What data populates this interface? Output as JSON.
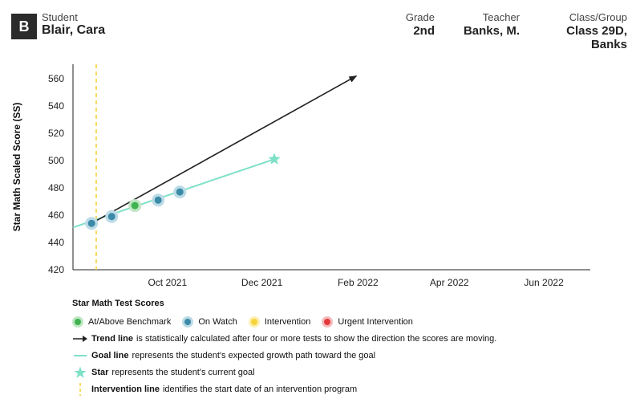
{
  "header": {
    "badge": "B",
    "student_label": "Student",
    "student_name": "Blair, Cara",
    "grade_label": "Grade",
    "grade_value": "2nd",
    "teacher_label": "Teacher",
    "teacher_value": "Banks, M.",
    "class_label": "Class/Group",
    "class_value": "Class 29D, Banks"
  },
  "chart_data": {
    "type": "line",
    "ylabel": "Star Math Scaled Score (SS)",
    "ylim": [
      420,
      570
    ],
    "yticks": [
      420,
      440,
      460,
      480,
      500,
      520,
      540,
      560
    ],
    "xticks": [
      "Oct 2021",
      "Dec 2021",
      "Feb 2022",
      "Apr 2022",
      "Jun 2022"
    ],
    "xtick_dates": [
      "2021-10-01",
      "2021-12-01",
      "2022-02-01",
      "2022-04-01",
      "2022-06-01"
    ],
    "xlim": [
      "2021-08-01",
      "2022-07-01"
    ],
    "intervention_date": "2021-08-16",
    "scores": [
      {
        "date": "2021-08-13",
        "value": 454,
        "category": "On Watch"
      },
      {
        "date": "2021-08-26",
        "value": 459,
        "category": "On Watch"
      },
      {
        "date": "2021-09-10",
        "value": 467,
        "category": "At/Above Benchmark"
      },
      {
        "date": "2021-09-25",
        "value": 471,
        "category": "On Watch"
      },
      {
        "date": "2021-10-09",
        "value": 477,
        "category": "On Watch"
      }
    ],
    "goal_line": {
      "start": {
        "date": "2021-08-01",
        "value": 451
      },
      "end": {
        "date": "2021-12-09",
        "value": 501
      }
    },
    "goal_star": {
      "date": "2021-12-09",
      "value": 501
    },
    "trend_line": {
      "start": {
        "date": "2021-08-13",
        "value": 454
      },
      "end": {
        "date": "2022-01-31",
        "value": 562
      }
    },
    "colors": {
      "at_above": "#3fb34f",
      "on_watch": "#3a8aa8",
      "intervention": "#f5d33b",
      "urgent": "#e5383b",
      "goal": "#7fe0c8",
      "trend": "#222222"
    }
  },
  "legend": {
    "title": "Star Math Test Scores",
    "items": [
      {
        "label": "At/Above Benchmark",
        "color": "#3fb34f",
        "ring": "#bfe7c4"
      },
      {
        "label": "On Watch",
        "color": "#3a8aa8",
        "ring": "#bcdbe6"
      },
      {
        "label": "Intervention",
        "color": "#f5d33b",
        "ring": "#fcefb0"
      },
      {
        "label": "Urgent Intervention",
        "color": "#e5383b",
        "ring": "#f6bcbd"
      }
    ],
    "trend_bold": "Trend line",
    "trend_text": "is statistically calculated after four or more tests to show the direction the scores are moving.",
    "goal_bold": "Goal line",
    "goal_text": "represents the student's expected growth path toward the goal",
    "star_bold": "Star",
    "star_text": "represents the student's current goal",
    "intervention_bold": "Intervention line",
    "intervention_text": "identifies the start date of an intervention program"
  }
}
